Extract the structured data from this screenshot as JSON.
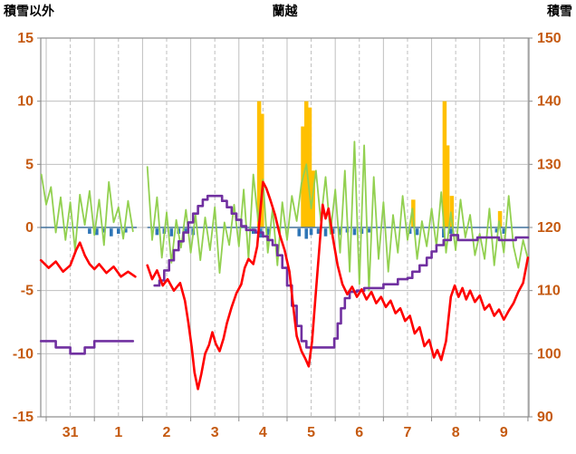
{
  "header": {
    "left_axis_title": "積雪以外",
    "title": "蘭越",
    "right_axis_title": "積雪"
  },
  "chart_data": {
    "type": "line",
    "title": "蘭越",
    "left_axis": {
      "label": "積雪以外",
      "min": -15,
      "max": 15,
      "ticks": [
        15,
        10,
        5,
        0,
        -5,
        -10,
        -15
      ]
    },
    "right_axis": {
      "label": "積雪",
      "min": 90,
      "max": 150,
      "ticks": [
        150,
        140,
        130,
        120,
        110,
        100,
        90
      ]
    },
    "x_axis": {
      "labels": [
        "31",
        "1",
        "2",
        "3",
        "4",
        "5",
        "6",
        "7",
        "8",
        "9"
      ],
      "t_min": -0.113,
      "t_max": 10.02,
      "day_lines": [
        0,
        1,
        2,
        3,
        4,
        5,
        6,
        7,
        8,
        9,
        10
      ]
    },
    "style": {
      "grid_color": "#BFBFBF",
      "border_color": "#8C8C8C",
      "tick_label_color": "#C55A11",
      "background": "#FFFFFF"
    },
    "series": {
      "green_line": {
        "name": "green-line",
        "color": "#92D050",
        "width": 1.8,
        "axis": "left",
        "t0": -0.1,
        "dt": 0.1,
        "values": [
          4.2,
          1.8,
          3.2,
          -0.4,
          2.4,
          -1.0,
          2.0,
          -1.8,
          2.6,
          0.2,
          2.9,
          -0.6,
          2.2,
          -1.4,
          3.6,
          0.4,
          1.6,
          -0.9,
          2.1,
          -0.3,
          null,
          null,
          4.8,
          -1.0,
          2.4,
          -2.4,
          1.2,
          -2.8,
          0.6,
          -1.6,
          1.4,
          -2.0,
          1.0,
          -2.6,
          0.8,
          -1.8,
          1.6,
          -3.6,
          0.4,
          -1.4,
          1.8,
          -1.5,
          3.0,
          -2.5,
          4.2,
          0.5,
          3.8,
          -2.0,
          1.5,
          -3.0,
          2.0,
          -1.0,
          2.5,
          0.5,
          3.5,
          5.0,
          1.5,
          4.5,
          0.5,
          4.0,
          -0.5,
          3.0,
          -2.0,
          4.5,
          -3.5,
          6.8,
          -4.5,
          6.5,
          -5.0,
          4.0,
          -2.5,
          2.0,
          -3.5,
          1.0,
          -2.0,
          2.5,
          -1.0,
          1.5,
          -2.5,
          0.5,
          -1.5,
          1.5,
          -1.5,
          2.8,
          -2.0,
          1.2,
          -1.8,
          2.2,
          -0.8,
          1.0,
          -2.2,
          -0.5,
          -2.5,
          1.5,
          -3.0,
          0.5,
          -2.0,
          2.5,
          -1.5,
          -3.2,
          -1.0,
          -2.5
        ]
      },
      "red_line": {
        "name": "red-line",
        "color": "#FF0000",
        "width": 2.6,
        "axis": "left",
        "points": [
          [
            -0.11,
            -2.6
          ],
          [
            0.05,
            -3.2
          ],
          [
            0.2,
            -2.7
          ],
          [
            0.35,
            -3.5
          ],
          [
            0.5,
            -3.0
          ],
          [
            0.62,
            -1.8
          ],
          [
            0.7,
            -1.2
          ],
          [
            0.8,
            -2.2
          ],
          [
            0.9,
            -2.9
          ],
          [
            1.0,
            -3.3
          ],
          [
            1.1,
            -2.9
          ],
          [
            1.25,
            -3.6
          ],
          [
            1.4,
            -3.1
          ],
          [
            1.55,
            -3.9
          ],
          [
            1.7,
            -3.5
          ],
          [
            1.85,
            -3.9
          ],
          null,
          [
            2.1,
            -3.0
          ],
          [
            2.2,
            -4.1
          ],
          [
            2.3,
            -3.4
          ],
          [
            2.42,
            -4.6
          ],
          [
            2.52,
            -4.1
          ],
          [
            2.65,
            -5.0
          ],
          [
            2.78,
            -4.4
          ],
          [
            2.88,
            -5.8
          ],
          [
            2.95,
            -7.5
          ],
          [
            3.02,
            -9.5
          ],
          [
            3.08,
            -11.5
          ],
          [
            3.15,
            -12.8
          ],
          [
            3.22,
            -11.6
          ],
          [
            3.3,
            -10.0
          ],
          [
            3.38,
            -9.3
          ],
          [
            3.45,
            -8.3
          ],
          [
            3.52,
            -9.2
          ],
          [
            3.6,
            -9.8
          ],
          [
            3.68,
            -8.8
          ],
          [
            3.75,
            -7.6
          ],
          [
            3.85,
            -6.3
          ],
          [
            3.95,
            -5.2
          ],
          [
            4.05,
            -4.5
          ],
          [
            4.12,
            -3.2
          ],
          [
            4.2,
            -2.5
          ],
          [
            4.3,
            -2.9
          ],
          [
            4.38,
            -1.5
          ],
          [
            4.45,
            1.5
          ],
          [
            4.5,
            3.6
          ],
          [
            4.57,
            3.1
          ],
          [
            4.65,
            2.2
          ],
          [
            4.75,
            1.0
          ],
          [
            4.85,
            -0.6
          ],
          [
            4.95,
            -1.8
          ],
          [
            5.05,
            -3.5
          ],
          [
            5.12,
            -6.0
          ],
          [
            5.2,
            -8.6
          ],
          [
            5.3,
            -9.8
          ],
          [
            5.38,
            -10.4
          ],
          [
            5.45,
            -11.0
          ],
          [
            5.52,
            -9.0
          ],
          [
            5.6,
            -5.0
          ],
          [
            5.68,
            -1.2
          ],
          [
            5.74,
            1.8
          ],
          [
            5.8,
            0.7
          ],
          [
            5.86,
            1.5
          ],
          [
            5.95,
            -0.8
          ],
          [
            6.05,
            -3.0
          ],
          [
            6.15,
            -4.5
          ],
          [
            6.25,
            -5.3
          ],
          [
            6.35,
            -4.7
          ],
          [
            6.45,
            -5.5
          ],
          [
            6.55,
            -4.9
          ],
          [
            6.65,
            -5.7
          ],
          [
            6.75,
            -5.1
          ],
          [
            6.85,
            -6.0
          ],
          [
            6.95,
            -5.5
          ],
          [
            7.05,
            -6.3
          ],
          [
            7.15,
            -5.8
          ],
          [
            7.25,
            -6.8
          ],
          [
            7.35,
            -6.4
          ],
          [
            7.45,
            -7.4
          ],
          [
            7.55,
            -7.0
          ],
          [
            7.65,
            -8.4
          ],
          [
            7.75,
            -7.9
          ],
          [
            7.85,
            -9.4
          ],
          [
            7.95,
            -8.9
          ],
          [
            8.05,
            -10.3
          ],
          [
            8.12,
            -9.7
          ],
          [
            8.2,
            -10.5
          ],
          [
            8.3,
            -9.0
          ],
          [
            8.4,
            -5.5
          ],
          [
            8.48,
            -4.6
          ],
          [
            8.56,
            -5.5
          ],
          [
            8.64,
            -4.8
          ],
          [
            8.72,
            -5.7
          ],
          [
            8.8,
            -5.0
          ],
          [
            8.9,
            -5.9
          ],
          [
            9.0,
            -5.4
          ],
          [
            9.1,
            -6.5
          ],
          [
            9.2,
            -6.1
          ],
          [
            9.3,
            -7.0
          ],
          [
            9.4,
            -6.5
          ],
          [
            9.5,
            -7.3
          ],
          [
            9.6,
            -6.6
          ],
          [
            9.7,
            -6.0
          ],
          [
            9.8,
            -5.1
          ],
          [
            9.9,
            -4.4
          ],
          [
            10.0,
            -2.4
          ]
        ]
      },
      "purple_line": {
        "name": "purple-line",
        "color": "#7030A0",
        "width": 2.6,
        "axis": "right",
        "step": true,
        "points": [
          [
            -0.11,
            -9.0
          ],
          [
            0.15,
            -9.0
          ],
          [
            0.2,
            -9.5
          ],
          [
            0.45,
            -9.5
          ],
          [
            0.5,
            -10.0
          ],
          [
            0.75,
            -10.0
          ],
          [
            0.8,
            -9.5
          ],
          [
            0.95,
            -9.5
          ],
          [
            1.0,
            -9.0
          ],
          [
            1.8,
            -9.0
          ],
          null,
          [
            2.25,
            -4.6
          ],
          [
            2.35,
            -4.2
          ],
          [
            2.45,
            -3.4
          ],
          [
            2.55,
            -2.6
          ],
          [
            2.65,
            -1.8
          ],
          [
            2.75,
            -1.1
          ],
          [
            2.85,
            -0.4
          ],
          [
            2.95,
            0.4
          ],
          [
            3.05,
            1.1
          ],
          [
            3.15,
            1.7
          ],
          [
            3.25,
            2.2
          ],
          [
            3.35,
            2.5
          ],
          [
            3.55,
            2.5
          ],
          [
            3.65,
            2.1
          ],
          [
            3.75,
            1.6
          ],
          [
            3.85,
            1.1
          ],
          [
            3.95,
            0.6
          ],
          [
            4.05,
            0.1
          ],
          [
            4.15,
            -0.2
          ],
          [
            4.35,
            -0.4
          ],
          [
            4.5,
            -0.7
          ],
          [
            4.6,
            -1.0
          ],
          [
            4.7,
            -1.4
          ],
          [
            4.8,
            -2.2
          ],
          [
            4.9,
            -3.2
          ],
          [
            5.0,
            -4.6
          ],
          [
            5.1,
            -6.2
          ],
          [
            5.2,
            -7.8
          ],
          [
            5.3,
            -9.0
          ],
          [
            5.4,
            -9.5
          ],
          [
            5.9,
            -9.5
          ],
          [
            5.98,
            -8.8
          ],
          [
            6.05,
            -7.6
          ],
          [
            6.12,
            -6.4
          ],
          [
            6.2,
            -5.6
          ],
          [
            6.3,
            -5.1
          ],
          [
            6.45,
            -5.0
          ],
          [
            6.6,
            -4.8
          ],
          [
            6.9,
            -4.8
          ],
          [
            7.0,
            -4.5
          ],
          [
            7.2,
            -4.5
          ],
          [
            7.3,
            -4.1
          ],
          [
            7.5,
            -4.0
          ],
          [
            7.6,
            -3.5
          ],
          [
            7.75,
            -3.0
          ],
          [
            7.9,
            -2.4
          ],
          [
            8.0,
            -1.9
          ],
          [
            8.1,
            -1.4
          ],
          [
            8.25,
            -1.0
          ],
          [
            8.4,
            -0.6
          ],
          [
            8.55,
            -1.0
          ],
          [
            8.85,
            -1.0
          ],
          [
            8.95,
            -0.8
          ],
          [
            9.3,
            -0.8
          ],
          [
            9.4,
            -1.0
          ],
          [
            9.65,
            -1.0
          ],
          [
            9.75,
            -0.8
          ],
          [
            10.0,
            -0.8
          ]
        ]
      },
      "orange_bars": {
        "name": "orange-bars",
        "color": "#FFC000",
        "bar_width": 4.5,
        "axis": "left",
        "bars": [
          [
            4.42,
            10
          ],
          [
            4.48,
            9
          ],
          [
            5.33,
            8
          ],
          [
            5.4,
            10
          ],
          [
            5.47,
            9.5
          ],
          [
            5.54,
            4.5
          ],
          [
            7.62,
            2.2
          ],
          [
            8.27,
            10
          ],
          [
            8.33,
            6.5
          ],
          [
            8.42,
            2.5
          ],
          [
            9.42,
            1.3
          ]
        ]
      },
      "blue_marks": {
        "name": "blue-marks",
        "color": "#2E75B6",
        "baseline_color": "#41719C",
        "axis": "left",
        "baseline_segments": [
          [
            -0.113,
            1.88
          ],
          [
            2.1,
            10.02
          ]
        ],
        "ticks": [
          [
            0.9,
            0.5
          ],
          [
            1.05,
            0.6
          ],
          [
            1.2,
            0.4
          ],
          [
            1.35,
            0.7
          ],
          [
            1.5,
            0.5
          ],
          [
            1.65,
            0.4
          ],
          [
            2.3,
            0.6
          ],
          [
            2.45,
            0.5
          ],
          [
            2.6,
            0.7
          ],
          [
            2.75,
            0.5
          ],
          [
            2.9,
            0.4
          ],
          [
            3.05,
            0.6
          ],
          [
            4.3,
            0.5
          ],
          [
            4.45,
            0.8
          ],
          [
            4.6,
            0.6
          ],
          [
            5.25,
            0.7
          ],
          [
            5.4,
            0.9
          ],
          [
            5.5,
            0.6
          ],
          [
            5.65,
            0.5
          ],
          [
            5.8,
            0.7
          ],
          [
            5.95,
            0.5
          ],
          [
            6.1,
            0.6
          ],
          [
            6.25,
            0.4
          ],
          [
            6.4,
            0.6
          ],
          [
            6.55,
            0.5
          ],
          [
            6.7,
            0.4
          ],
          [
            7.55,
            0.5
          ],
          [
            7.7,
            0.6
          ],
          [
            8.25,
            0.8
          ],
          [
            8.4,
            0.5
          ],
          [
            9.35,
            0.4
          ],
          [
            9.5,
            0.5
          ]
        ]
      }
    }
  }
}
